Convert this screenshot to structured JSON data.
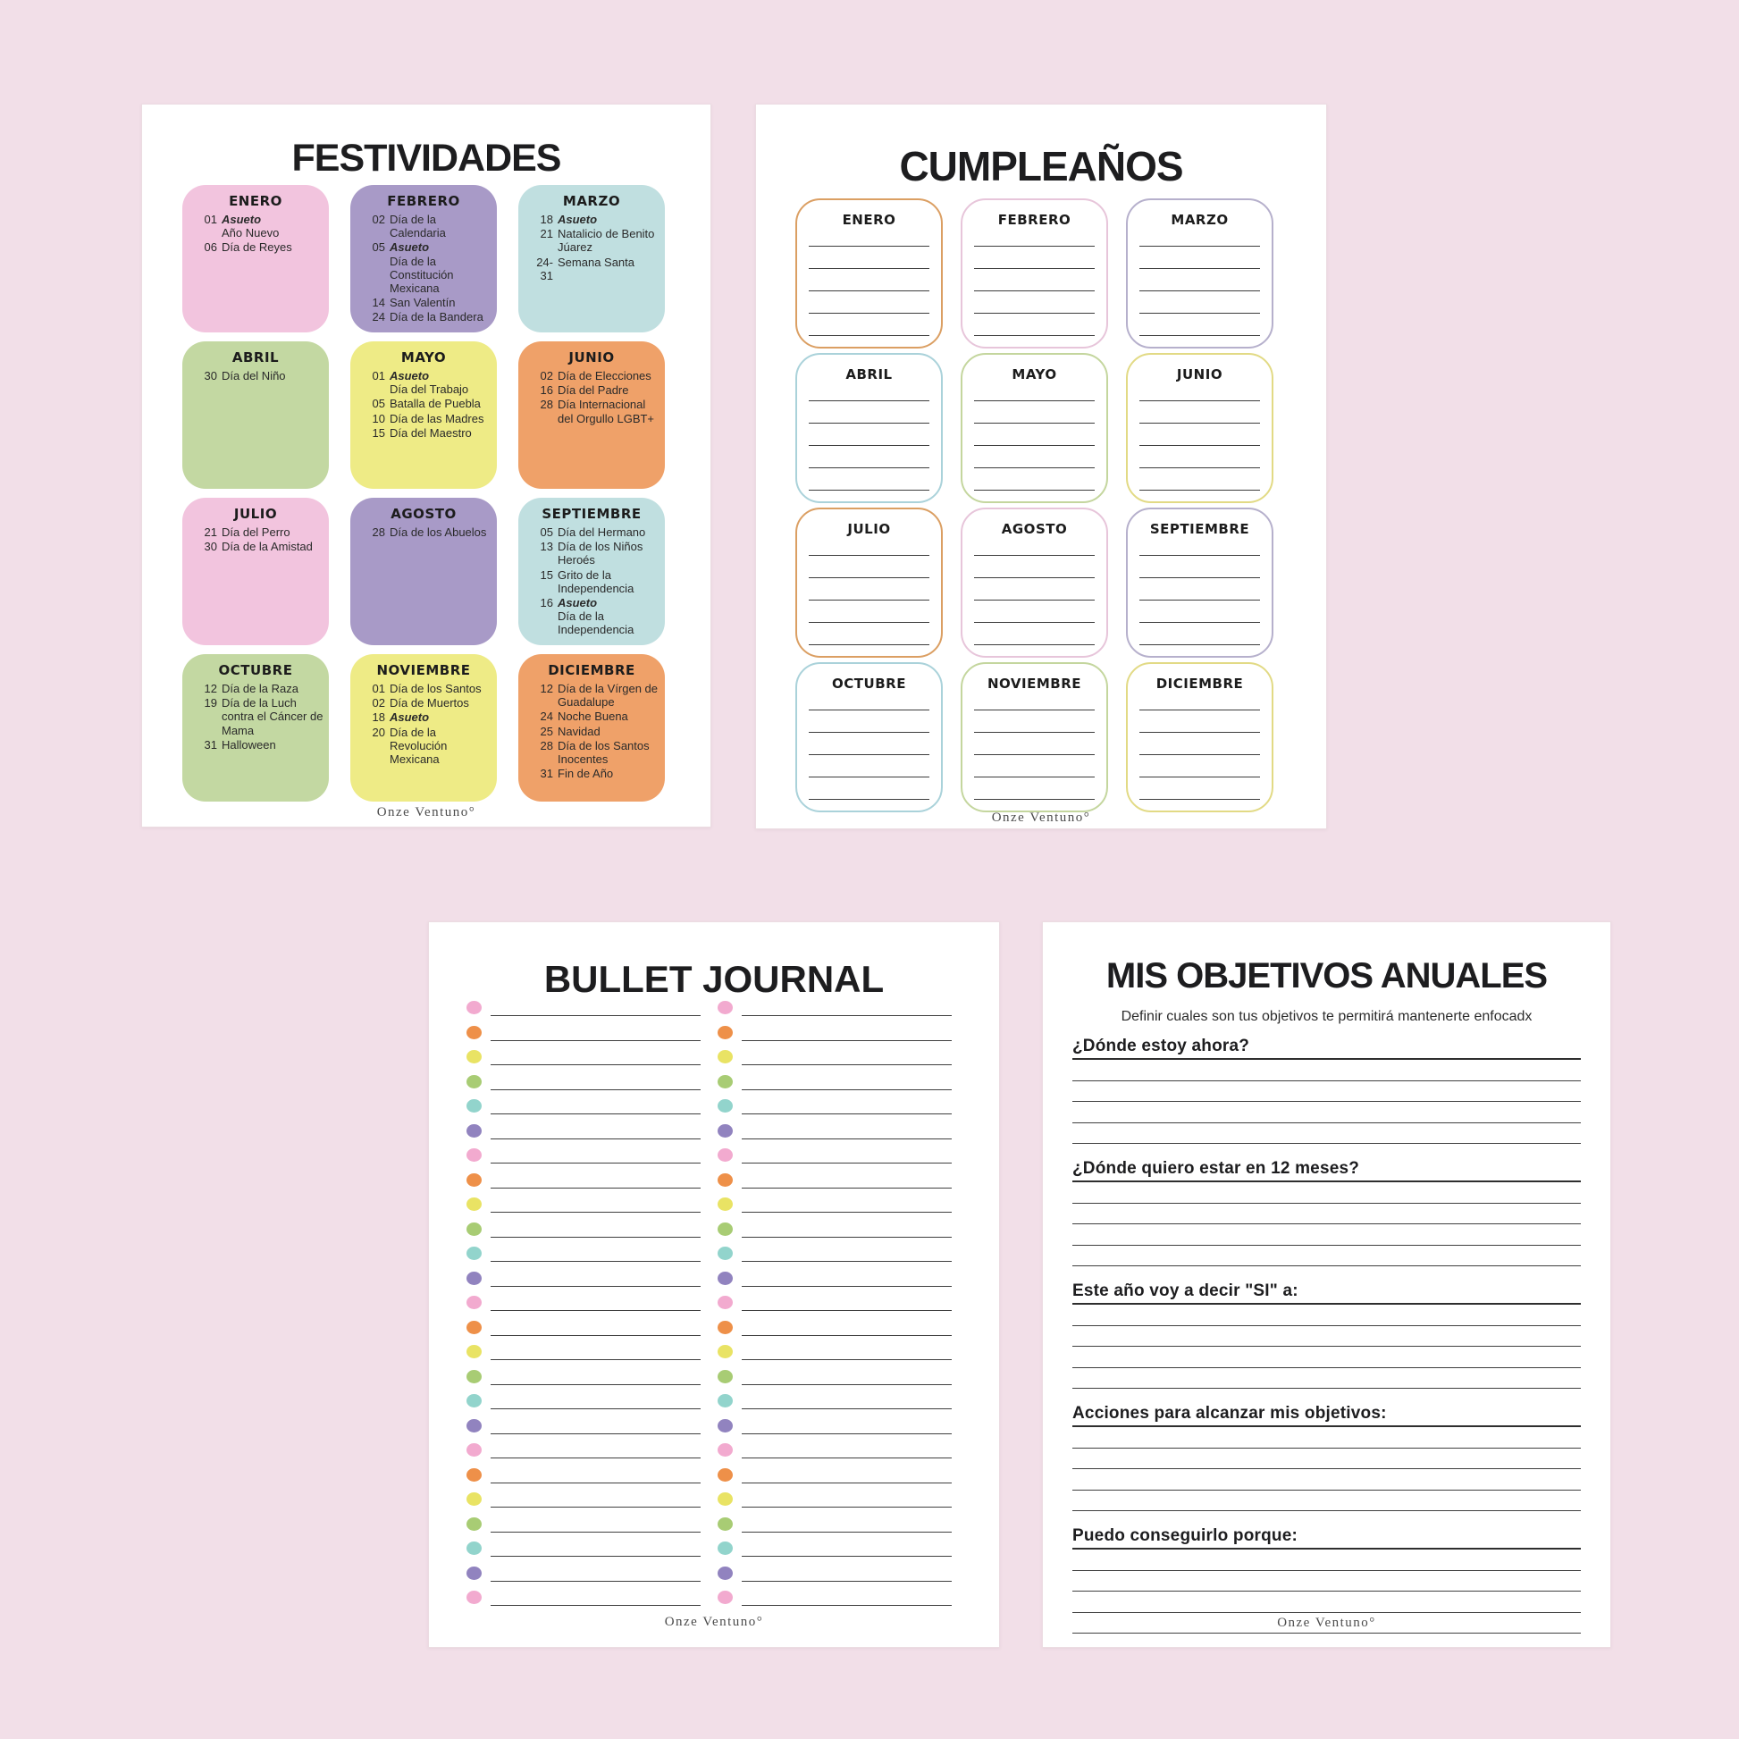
{
  "pages": {
    "festividades": {
      "title": "FESTIVIDADES",
      "footer": "Onze Ventuno°",
      "months": [
        {
          "name": "ENERO",
          "color": "pink",
          "events": [
            {
              "day": "01",
              "lines": [
                {
                  "t": "Asueto",
                  "em": true
                },
                {
                  "t": "Año Nuevo"
                }
              ]
            },
            {
              "day": "06",
              "lines": [
                {
                  "t": "Día de Reyes"
                }
              ]
            }
          ]
        },
        {
          "name": "FEBRERO",
          "color": "purple",
          "events": [
            {
              "day": "02",
              "lines": [
                {
                  "t": "Día de la Calendaria"
                }
              ]
            },
            {
              "day": "05",
              "lines": [
                {
                  "t": "Asueto",
                  "em": true
                },
                {
                  "t": "Día de la Constitución Mexicana"
                }
              ]
            },
            {
              "day": "14",
              "lines": [
                {
                  "t": "San Valentín"
                }
              ]
            },
            {
              "day": "24",
              "lines": [
                {
                  "t": "Día de la Bandera"
                }
              ]
            }
          ]
        },
        {
          "name": "MARZO",
          "color": "teal",
          "events": [
            {
              "day": "18",
              "lines": [
                {
                  "t": "Asueto",
                  "em": true
                }
              ]
            },
            {
              "day": "21",
              "lines": [
                {
                  "t": "Natalicio de Benito Júarez"
                }
              ]
            },
            {
              "day": "24-31",
              "lines": [
                {
                  "t": "Semana Santa"
                }
              ]
            }
          ]
        },
        {
          "name": "ABRIL",
          "color": "green",
          "events": [
            {
              "day": "30",
              "lines": [
                {
                  "t": "Día del Niño"
                }
              ]
            }
          ]
        },
        {
          "name": "MAYO",
          "color": "yellow",
          "events": [
            {
              "day": "01",
              "lines": [
                {
                  "t": "Asueto",
                  "em": true
                },
                {
                  "t": "Día del Trabajo"
                }
              ]
            },
            {
              "day": "05",
              "lines": [
                {
                  "t": "Batalla de Puebla"
                }
              ]
            },
            {
              "day": "10",
              "lines": [
                {
                  "t": "Día de las Madres"
                }
              ]
            },
            {
              "day": "15",
              "lines": [
                {
                  "t": "Día del Maestro"
                }
              ]
            }
          ]
        },
        {
          "name": "JUNIO",
          "color": "orange",
          "events": [
            {
              "day": "02",
              "lines": [
                {
                  "t": "Día de Elecciones"
                }
              ]
            },
            {
              "day": "16",
              "lines": [
                {
                  "t": "Día del Padre"
                }
              ]
            },
            {
              "day": "28",
              "lines": [
                {
                  "t": "Día Internacional del Orgullo LGBT+"
                }
              ]
            }
          ]
        },
        {
          "name": "JULIO",
          "color": "pink",
          "events": [
            {
              "day": "21",
              "lines": [
                {
                  "t": "Día del Perro"
                }
              ]
            },
            {
              "day": "30",
              "lines": [
                {
                  "t": "Día de la Amistad"
                }
              ]
            }
          ]
        },
        {
          "name": "AGOSTO",
          "color": "purple",
          "events": [
            {
              "day": "28",
              "lines": [
                {
                  "t": "Día de los Abuelos"
                }
              ]
            }
          ]
        },
        {
          "name": "SEPTIEMBRE",
          "color": "teal",
          "events": [
            {
              "day": "05",
              "lines": [
                {
                  "t": "Día del Hermano"
                }
              ]
            },
            {
              "day": "13",
              "lines": [
                {
                  "t": "Día de los Niños Heroés"
                }
              ]
            },
            {
              "day": "15",
              "lines": [
                {
                  "t": "Grito de la Independencia"
                }
              ]
            },
            {
              "day": "16",
              "lines": [
                {
                  "t": "Asueto",
                  "em": true
                },
                {
                  "t": "Día de la Independencia"
                }
              ]
            }
          ]
        },
        {
          "name": "OCTUBRE",
          "color": "green",
          "events": [
            {
              "day": "12",
              "lines": [
                {
                  "t": "Día de la Raza"
                }
              ]
            },
            {
              "day": "19",
              "lines": [
                {
                  "t": "Día de la Luch contra el Cáncer de Mama"
                }
              ]
            },
            {
              "day": "31",
              "lines": [
                {
                  "t": "Halloween"
                }
              ]
            }
          ]
        },
        {
          "name": "NOVIEMBRE",
          "color": "yellow",
          "events": [
            {
              "day": "01",
              "lines": [
                {
                  "t": "Día de los Santos"
                }
              ]
            },
            {
              "day": "02",
              "lines": [
                {
                  "t": "Día de Muertos"
                }
              ]
            },
            {
              "day": "18",
              "lines": [
                {
                  "t": "Asueto",
                  "em": true
                }
              ]
            },
            {
              "day": "20",
              "lines": [
                {
                  "t": "Día de la Revolución Mexicana"
                }
              ]
            }
          ]
        },
        {
          "name": "DICIEMBRE",
          "color": "orange",
          "events": [
            {
              "day": "12",
              "lines": [
                {
                  "t": "Día de la Vírgen de Guadalupe"
                }
              ]
            },
            {
              "day": "24",
              "lines": [
                {
                  "t": "Noche Buena"
                }
              ]
            },
            {
              "day": "25",
              "lines": [
                {
                  "t": "Navidad"
                }
              ]
            },
            {
              "day": "28",
              "lines": [
                {
                  "t": "Día de los Santos Inocentes"
                }
              ]
            },
            {
              "day": "31",
              "lines": [
                {
                  "t": "Fin de Año"
                }
              ]
            }
          ]
        }
      ]
    },
    "cumpleanos": {
      "title": "CUMPLEAÑOS",
      "footer": "Onze Ventuno°",
      "lines_per_box": 5,
      "months": [
        {
          "name": "ENERO",
          "border": "orange"
        },
        {
          "name": "FEBRERO",
          "border": "pink"
        },
        {
          "name": "MARZO",
          "border": "lavender"
        },
        {
          "name": "ABRIL",
          "border": "blue"
        },
        {
          "name": "MAYO",
          "border": "green"
        },
        {
          "name": "JUNIO",
          "border": "yellow"
        },
        {
          "name": "JULIO",
          "border": "orange"
        },
        {
          "name": "AGOSTO",
          "border": "pink"
        },
        {
          "name": "SEPTIEMBRE",
          "border": "lavender"
        },
        {
          "name": "OCTUBRE",
          "border": "blue"
        },
        {
          "name": "NOVIEMBRE",
          "border": "green"
        },
        {
          "name": "DICIEMBRE",
          "border": "yellow"
        }
      ]
    },
    "bullet_journal": {
      "title": "BULLET JOURNAL",
      "footer": "Onze Ventuno°",
      "columns": 2,
      "rows_per_column": 25,
      "dot_color_cycle": [
        "pink",
        "orange",
        "yellow",
        "green",
        "teal",
        "purple"
      ]
    },
    "objetivos": {
      "title": "MIS OBJETIVOS ANUALES",
      "subtitle": "Definir cuales son tus objetivos te permitirá mantenerte enfocadx",
      "footer": "Onze Ventuno°",
      "sections": [
        {
          "label": "¿Dónde estoy ahora?",
          "blank_lines": 4
        },
        {
          "label": "¿Dónde quiero estar en 12 meses?",
          "blank_lines": 4
        },
        {
          "label": "Este año voy a decir \"SI\" a:",
          "blank_lines": 4
        },
        {
          "label": "Acciones para alcanzar mis objetivos:",
          "blank_lines": 4
        },
        {
          "label": "Puedo conseguirlo porque:",
          "blank_lines": 4
        }
      ]
    }
  },
  "palette": {
    "canvas_bg": "#f2dfe8",
    "page_bg": "#ffffff",
    "text": "#1d1d1f",
    "line": "#3f3f3f",
    "fest_box_fill": {
      "pink": "#f2c4de",
      "purple": "#a89ac7",
      "teal": "#c0dfe0",
      "green": "#c3d8a2",
      "yellow": "#eeeb86",
      "orange": "#efa169"
    },
    "cumple_border": {
      "orange": "#db9f63",
      "pink": "#e7c5da",
      "lavender": "#b6b0cc",
      "blue": "#aad2da",
      "green": "#c4d69e",
      "yellow": "#e2da85"
    },
    "dot_colors": {
      "pink": "#f2aacf",
      "orange": "#ee9049",
      "yellow": "#e9e364",
      "green": "#a8cc74",
      "teal": "#92d4cc",
      "purple": "#9183bf"
    }
  }
}
